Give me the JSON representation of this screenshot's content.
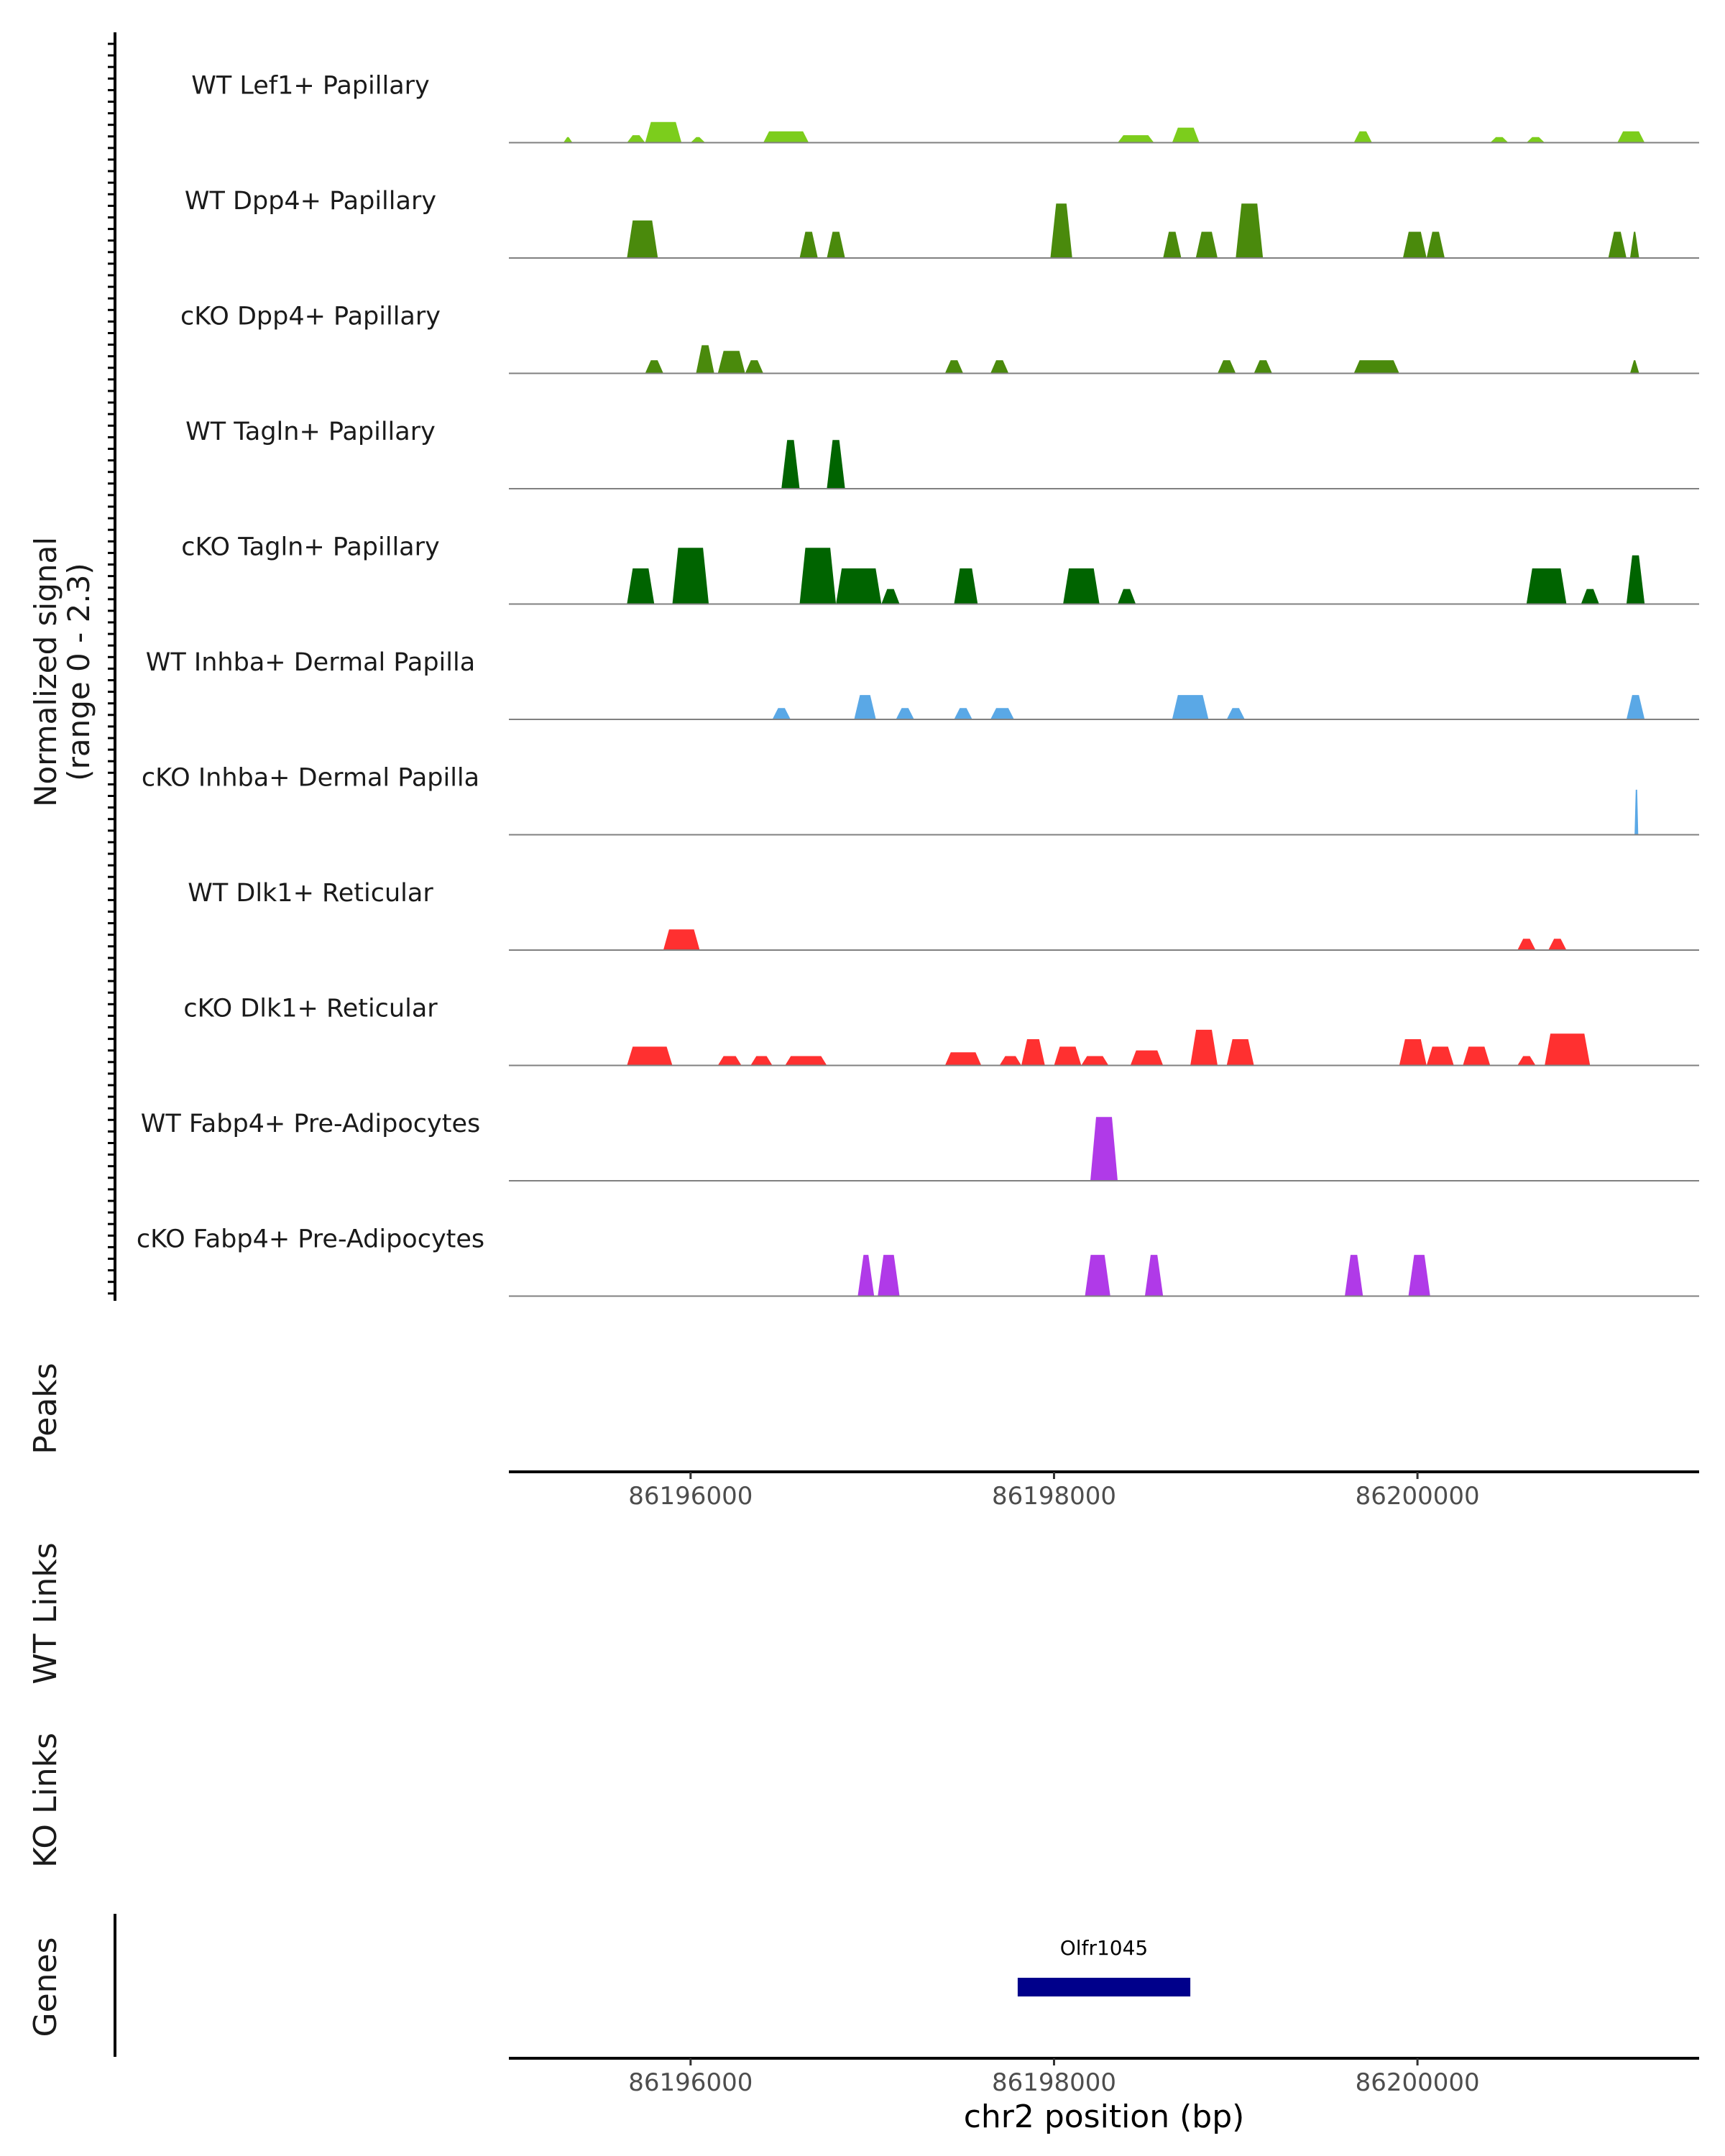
{
  "chart_data": {
    "type": "area",
    "title": "",
    "xlabel": "chr2 position (bp)",
    "signal_axis_label": [
      "Normalized signal",
      "(range 0 - 2.3)"
    ],
    "signal_range": [
      0,
      2.3
    ],
    "xlim": [
      86195000,
      86201550
    ],
    "x_ticks": [
      86196000,
      86198000,
      86200000
    ],
    "x_tick_labels": [
      "86196000",
      "86198000",
      "86200000"
    ],
    "panel_labels": {
      "peaks": "Peaks",
      "wt_links": "WT Links",
      "ko_links": "KO Links",
      "genes": "Genes"
    },
    "genes": [
      {
        "name": "Olfr1045",
        "start": 86197800,
        "end": 86198750
      }
    ],
    "colors": {
      "lef1": "#7ccd1c",
      "dpp4": "#4a8a0c",
      "tagln": "#006400",
      "inhba": "#5aa8e6",
      "dlk1": "#ff3030",
      "fabp4": "#b03ae8",
      "gene": "#00008b",
      "baseline": "#808080",
      "axis": "#000000"
    },
    "series": [
      {
        "name": "WT Lef1+ Papillary",
        "color_key": "lef1",
        "peaks": [
          [
            86195300,
            86195350,
            0.15
          ],
          [
            86195650,
            86195750,
            0.2
          ],
          [
            86195750,
            86195950,
            0.55
          ],
          [
            86196000,
            86196080,
            0.15
          ],
          [
            86196400,
            86196650,
            0.3
          ],
          [
            86198350,
            86198550,
            0.2
          ],
          [
            86198650,
            86198800,
            0.4
          ],
          [
            86199650,
            86199750,
            0.3
          ],
          [
            86200400,
            86200500,
            0.15
          ],
          [
            86200600,
            86200700,
            0.15
          ],
          [
            86201100,
            86201250,
            0.3
          ]
        ]
      },
      {
        "name": "WT Dpp4+ Papillary",
        "color_key": "dpp4",
        "peaks": [
          [
            86195650,
            86195820,
            1.0
          ],
          [
            86196600,
            86196700,
            0.7
          ],
          [
            86196750,
            86196850,
            0.7
          ],
          [
            86197980,
            86198100,
            1.45
          ],
          [
            86198600,
            86198700,
            0.7
          ],
          [
            86198780,
            86198900,
            0.7
          ],
          [
            86199000,
            86199150,
            1.45
          ],
          [
            86199920,
            86200050,
            0.7
          ],
          [
            86200050,
            86200150,
            0.7
          ],
          [
            86201050,
            86201150,
            0.7
          ],
          [
            86201170,
            86201220,
            0.7
          ]
        ]
      },
      {
        "name": "cKO Dpp4+ Papillary",
        "color_key": "dpp4",
        "peaks": [
          [
            86195750,
            86195850,
            0.35
          ],
          [
            86196030,
            86196130,
            0.75
          ],
          [
            86196150,
            86196300,
            0.6
          ],
          [
            86196300,
            86196400,
            0.35
          ],
          [
            86197400,
            86197500,
            0.35
          ],
          [
            86197650,
            86197750,
            0.35
          ],
          [
            86198900,
            86199000,
            0.35
          ],
          [
            86199100,
            86199200,
            0.35
          ],
          [
            86199650,
            86199900,
            0.35
          ],
          [
            86201170,
            86201220,
            0.35
          ]
        ]
      },
      {
        "name": "WT Tagln+ Papillary",
        "color_key": "tagln",
        "peaks": [
          [
            86196500,
            86196600,
            1.3
          ],
          [
            86196750,
            86196850,
            1.3
          ]
        ]
      },
      {
        "name": "cKO Tagln+ Papillary",
        "color_key": "tagln",
        "peaks": [
          [
            86195650,
            86195800,
            0.95
          ],
          [
            86195900,
            86196100,
            1.5
          ],
          [
            86196600,
            86196800,
            1.5
          ],
          [
            86196800,
            86197050,
            0.95
          ],
          [
            86197050,
            86197150,
            0.4
          ],
          [
            86197450,
            86197580,
            0.95
          ],
          [
            86198050,
            86198250,
            0.95
          ],
          [
            86198350,
            86198450,
            0.4
          ],
          [
            86200600,
            86200820,
            0.95
          ],
          [
            86200900,
            86201000,
            0.4
          ],
          [
            86201150,
            86201250,
            1.3
          ]
        ]
      },
      {
        "name": "WT Inhba+ Dermal Papilla",
        "color_key": "inhba",
        "peaks": [
          [
            86196450,
            86196550,
            0.3
          ],
          [
            86196900,
            86197020,
            0.65
          ],
          [
            86197130,
            86197230,
            0.3
          ],
          [
            86197450,
            86197550,
            0.3
          ],
          [
            86197650,
            86197780,
            0.3
          ],
          [
            86198650,
            86198850,
            0.65
          ],
          [
            86198950,
            86199050,
            0.3
          ],
          [
            86201150,
            86201250,
            0.65
          ]
        ]
      },
      {
        "name": "cKO Inhba+ Dermal Papilla",
        "color_key": "inhba",
        "peaks": [
          [
            86201195,
            86201215,
            1.2
          ]
        ]
      },
      {
        "name": "WT Dlk1+ Reticular",
        "color_key": "dlk1",
        "peaks": [
          [
            86195850,
            86196050,
            0.55
          ],
          [
            86200550,
            86200650,
            0.3
          ],
          [
            86200720,
            86200820,
            0.3
          ]
        ]
      },
      {
        "name": "cKO Dlk1+ Reticular",
        "color_key": "dlk1",
        "peaks": [
          [
            86195650,
            86195900,
            0.5
          ],
          [
            86196150,
            86196280,
            0.25
          ],
          [
            86196330,
            86196450,
            0.25
          ],
          [
            86196520,
            86196750,
            0.25
          ],
          [
            86197400,
            86197600,
            0.35
          ],
          [
            86197700,
            86197820,
            0.25
          ],
          [
            86197820,
            86197950,
            0.7
          ],
          [
            86198000,
            86198150,
            0.5
          ],
          [
            86198150,
            86198300,
            0.25
          ],
          [
            86198420,
            86198600,
            0.4
          ],
          [
            86198750,
            86198900,
            0.95
          ],
          [
            86198950,
            86199100,
            0.7
          ],
          [
            86199900,
            86200050,
            0.7
          ],
          [
            86200050,
            86200200,
            0.5
          ],
          [
            86200250,
            86200400,
            0.5
          ],
          [
            86200550,
            86200650,
            0.25
          ],
          [
            86200700,
            86200950,
            0.85
          ]
        ]
      },
      {
        "name": "WT Fabp4+ Pre-Adipocytes",
        "color_key": "fabp4",
        "peaks": [
          [
            86198200,
            86198350,
            1.7
          ]
        ]
      },
      {
        "name": "cKO Fabp4+ Pre-Adipocytes",
        "color_key": "fabp4",
        "peaks": [
          [
            86196920,
            86197010,
            1.1
          ],
          [
            86197030,
            86197150,
            1.1
          ],
          [
            86198170,
            86198310,
            1.1
          ],
          [
            86198500,
            86198600,
            1.1
          ],
          [
            86199600,
            86199700,
            1.1
          ],
          [
            86199950,
            86200070,
            1.1
          ]
        ]
      }
    ]
  }
}
